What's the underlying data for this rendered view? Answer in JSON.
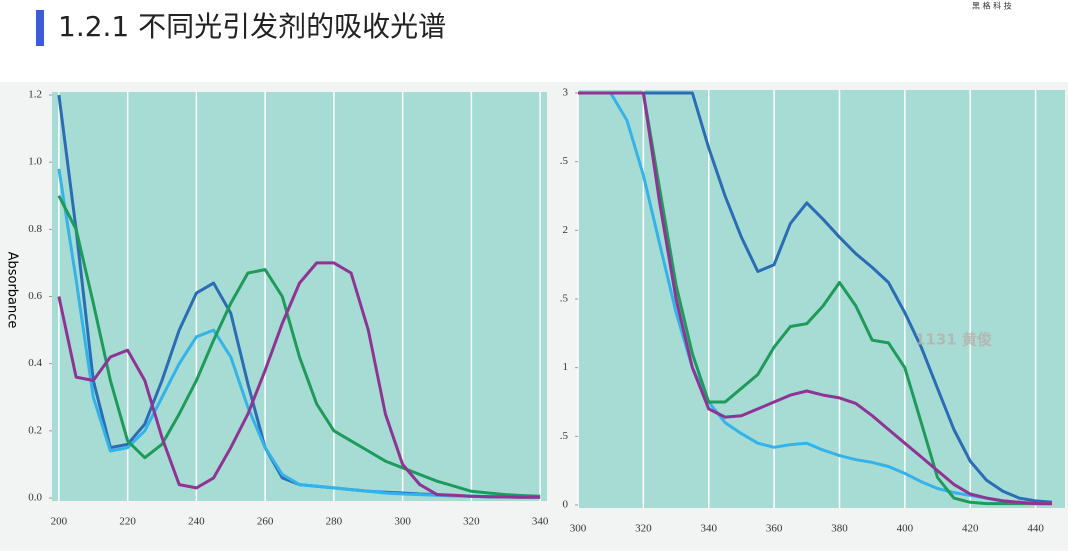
{
  "title": "1.2.1 不同光引发剂的吸收光谱",
  "logo": "黑 格 科 技",
  "chart_data": [
    {
      "type": "line",
      "y_label": "Absorbance",
      "x": [
        200,
        205,
        210,
        215,
        220,
        225,
        230,
        235,
        240,
        245,
        250,
        255,
        260,
        265,
        270,
        275,
        280,
        285,
        290,
        295,
        300,
        305,
        310,
        315,
        320,
        325,
        330,
        335,
        340
      ],
      "xlim": [
        198,
        342
      ],
      "xticks": [
        200,
        220,
        240,
        260,
        280,
        300,
        320,
        340
      ],
      "ylim": [
        0,
        1.2
      ],
      "yticks": [
        {
          "value": 0,
          "label": "0.0"
        },
        0.2,
        0.4,
        0.6,
        0.8,
        {
          "value": 1,
          "label": "1.0"
        },
        1.2
      ],
      "grid": true,
      "background": "#a6dcd4",
      "series": [
        {
          "color": "#2a6db5",
          "values": [
            1.2,
            0.8,
            0.35,
            0.15,
            0.16,
            0.22,
            0.35,
            0.5,
            0.61,
            0.64,
            0.55,
            0.34,
            0.15,
            0.06,
            0.04,
            0.035,
            0.03,
            0.025,
            0.02,
            0.017,
            0.015,
            0.012,
            0.01,
            0.007,
            0.005,
            0.004,
            0.003,
            0.002,
            0.002
          ]
        },
        {
          "color": "#35b3e8",
          "values": [
            0.98,
            0.65,
            0.3,
            0.14,
            0.15,
            0.2,
            0.3,
            0.4,
            0.48,
            0.5,
            0.42,
            0.27,
            0.15,
            0.07,
            0.04,
            0.035,
            0.03,
            0.025,
            0.02,
            0.015,
            0.012,
            0.01,
            0.008,
            0.006,
            0.005,
            0.004,
            0.003,
            0.002,
            0.002
          ]
        },
        {
          "color": "#1e9a5a",
          "values": [
            0.9,
            0.8,
            0.58,
            0.35,
            0.17,
            0.12,
            0.16,
            0.25,
            0.35,
            0.47,
            0.58,
            0.67,
            0.68,
            0.6,
            0.42,
            0.28,
            0.2,
            0.17,
            0.14,
            0.11,
            0.09,
            0.07,
            0.05,
            0.035,
            0.02,
            0.015,
            0.01,
            0.007,
            0.005
          ]
        },
        {
          "color": "#8e3594",
          "values": [
            0.6,
            0.36,
            0.35,
            0.42,
            0.44,
            0.35,
            0.18,
            0.04,
            0.03,
            0.06,
            0.15,
            0.25,
            0.38,
            0.52,
            0.64,
            0.7,
            0.7,
            0.67,
            0.5,
            0.25,
            0.1,
            0.04,
            0.01,
            0.008,
            0.005,
            0.004,
            0.003,
            0.002,
            0.002
          ]
        }
      ]
    },
    {
      "type": "line",
      "annotation": "1131 黄俊",
      "x": [
        300,
        305,
        310,
        315,
        320,
        325,
        330,
        335,
        340,
        345,
        350,
        355,
        360,
        365,
        370,
        375,
        380,
        385,
        390,
        395,
        400,
        405,
        410,
        415,
        420,
        425,
        430,
        435,
        440,
        445
      ],
      "xlim": [
        300,
        449
      ],
      "xticks": [
        300,
        320,
        340,
        360,
        380,
        400,
        420,
        440
      ],
      "ylim": [
        0,
        3
      ],
      "yticks": [
        0,
        {
          "value": 0.5,
          "label": ".5"
        },
        1,
        {
          "value": 1.5,
          "label": ".5"
        },
        2,
        {
          "value": 2.5,
          "label": ".5"
        },
        3
      ],
      "grid": true,
      "background": "#a6dcd4",
      "series": [
        {
          "color": "#2a6db5",
          "values": [
            3,
            3,
            3,
            3,
            3,
            3,
            3,
            3,
            2.6,
            2.25,
            1.95,
            1.7,
            1.75,
            2.05,
            2.2,
            2.08,
            1.95,
            1.83,
            1.73,
            1.62,
            1.4,
            1.15,
            0.85,
            0.55,
            0.32,
            0.18,
            0.1,
            0.05,
            0.03,
            0.02
          ]
        },
        {
          "color": "#35b3e8",
          "values": [
            3,
            3,
            3,
            2.8,
            2.4,
            1.9,
            1.4,
            1.0,
            0.75,
            0.6,
            0.52,
            0.45,
            0.42,
            0.44,
            0.45,
            0.4,
            0.36,
            0.33,
            0.31,
            0.28,
            0.23,
            0.17,
            0.12,
            0.09,
            0.07,
            0.05,
            0.03,
            0.02,
            0.01,
            0.01
          ]
        },
        {
          "color": "#1e9a5a",
          "values": [
            3,
            3,
            3,
            3,
            3,
            2.3,
            1.6,
            1.1,
            0.75,
            0.75,
            0.85,
            0.95,
            1.15,
            1.3,
            1.32,
            1.45,
            1.62,
            1.45,
            1.2,
            1.18,
            1.0,
            0.6,
            0.2,
            0.05,
            0.02,
            0.01,
            0.01,
            0.01,
            0.01,
            0.01
          ]
        },
        {
          "color": "#8e3594",
          "values": [
            3,
            3,
            3,
            3,
            3,
            2.2,
            1.5,
            1.0,
            0.7,
            0.64,
            0.65,
            0.7,
            0.75,
            0.8,
            0.83,
            0.8,
            0.78,
            0.74,
            0.65,
            0.55,
            0.45,
            0.35,
            0.25,
            0.15,
            0.08,
            0.05,
            0.03,
            0.02,
            0.01,
            0.01
          ]
        }
      ]
    }
  ]
}
